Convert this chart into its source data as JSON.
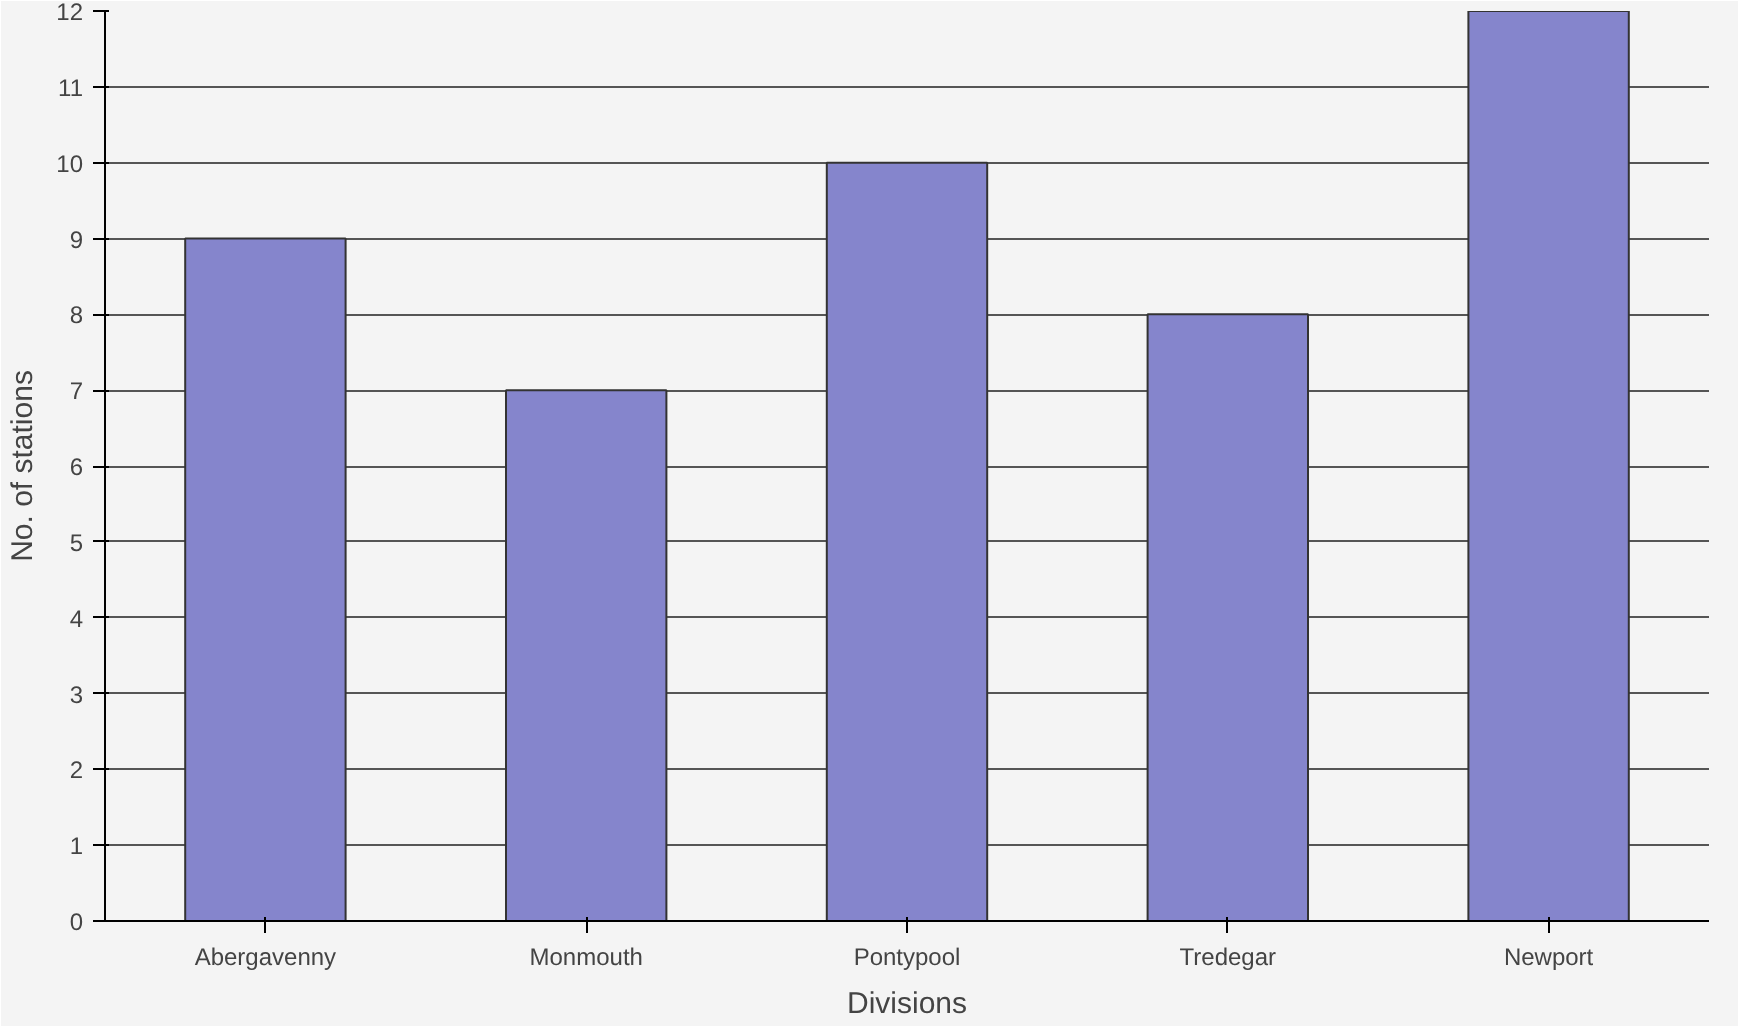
{
  "chart_data": {
    "type": "bar",
    "xlabel": "Divisions",
    "ylabel": "No. of stations",
    "categories": [
      "Abergavenny",
      "Monmouth",
      "Pontypool",
      "Tredegar",
      "Newport"
    ],
    "values": [
      9,
      7,
      10,
      8,
      12
    ],
    "color": "#8585cc",
    "ylim": [
      0,
      12
    ],
    "yticks": [
      0,
      1,
      2,
      3,
      4,
      5,
      6,
      7,
      8,
      9,
      10,
      11,
      12
    ],
    "grid": "y"
  }
}
